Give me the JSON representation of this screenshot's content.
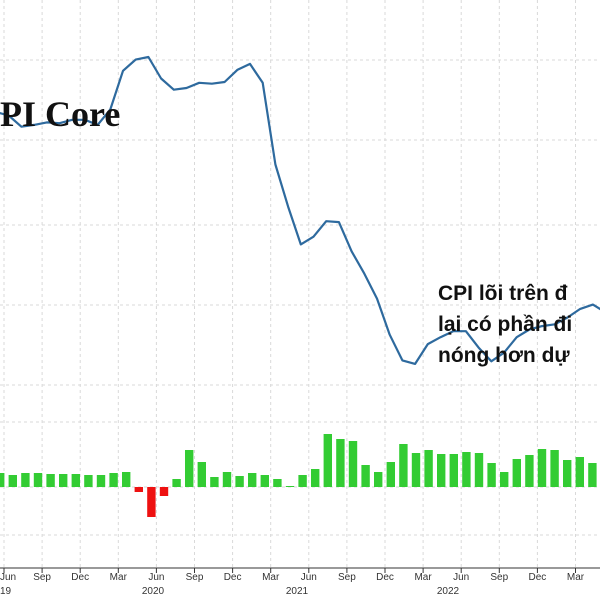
{
  "chart_data": {
    "type": "line",
    "title": "PI Core",
    "annotation": [
      "CPI lõi trên đ",
      "lại có phần đi",
      "nóng hơn dự"
    ],
    "x_tick_labels": [
      "Jun",
      "Sep",
      "Dec",
      "Mar",
      "Jun",
      "Sep",
      "Dec",
      "Mar",
      "Jun",
      "Sep",
      "Dec",
      "Mar",
      "Jun",
      "Sep",
      "Dec",
      "Mar"
    ],
    "year_labels": [
      "19",
      "2020",
      "2021",
      "2022"
    ],
    "grid": true,
    "series": [
      {
        "type": "line",
        "color": "#2e6a9e",
        "values": [
          342,
          338,
          325,
          327,
          330,
          329,
          333,
          333,
          327,
          345,
          390,
          403,
          406,
          381,
          368,
          370,
          376,
          375,
          377,
          391,
          398,
          376,
          281,
          232,
          188,
          197,
          215,
          214,
          180,
          154,
          125,
          83,
          53,
          49,
          72,
          80,
          87,
          87,
          68,
          52,
          62,
          80,
          89,
          93,
          95,
          103,
          113,
          118,
          109
        ]
      },
      {
        "type": "bar",
        "color_positive": "#33cc33",
        "color_negative": "#ee1111",
        "values": [
          14,
          12,
          14,
          14,
          13,
          13,
          13,
          12,
          12,
          14,
          15,
          -5,
          -30,
          -9,
          8,
          37,
          25,
          10,
          15,
          11,
          14,
          12,
          8,
          1,
          12,
          18,
          53,
          48,
          46,
          22,
          15,
          25,
          43,
          34,
          37,
          33,
          33,
          35,
          34,
          24,
          15,
          28,
          32,
          38,
          37,
          27,
          30,
          24,
          30,
          34,
          25,
          20,
          22,
          25,
          25,
          21,
          32,
          29
        ]
      }
    ]
  }
}
